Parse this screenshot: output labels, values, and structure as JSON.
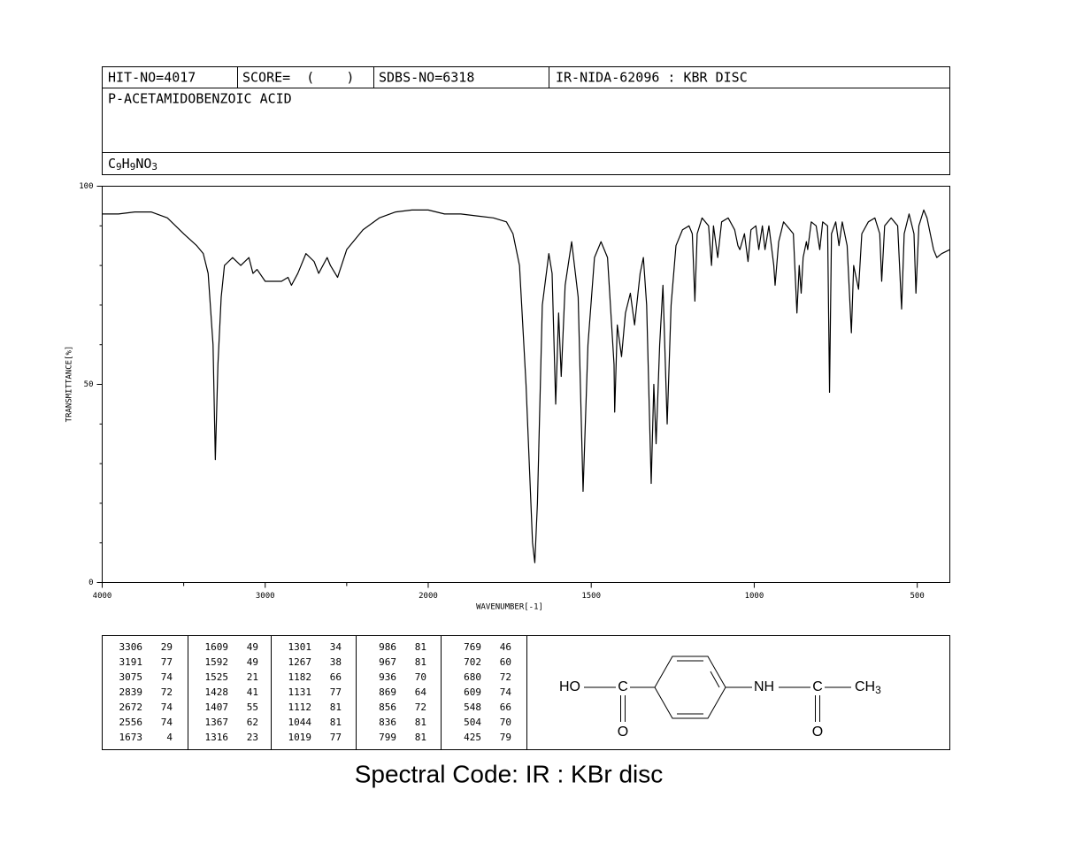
{
  "header": {
    "hit_no": "HIT-NO=4017",
    "score": "SCORE=  (    )",
    "sdbs_no": "SDBS-NO=6318",
    "code": "IR-NIDA-62096 : KBR DISC",
    "name": "P-ACETAMIDOBENZOIC ACID",
    "formula": [
      "C",
      "9",
      "H",
      "9",
      "NO",
      "3"
    ]
  },
  "chart_data": {
    "type": "line",
    "xlabel": "WAVENUMBER[-1]",
    "ylabel": "TRANSMITTANCE[%]",
    "xlim": [
      4000,
      400
    ],
    "x_scale_break": 2000,
    "xticks": [
      4000,
      3000,
      2000,
      1500,
      1000,
      500
    ],
    "xticks_minor": [
      3500,
      2500
    ],
    "ylim": [
      0,
      100
    ],
    "yticks": [
      0,
      50,
      100
    ],
    "yticks_minor": [
      10,
      20,
      30,
      40,
      60,
      70,
      80,
      90
    ],
    "x": [
      4000,
      3900,
      3800,
      3700,
      3600,
      3500,
      3420,
      3380,
      3350,
      3320,
      3306,
      3290,
      3270,
      3250,
      3200,
      3150,
      3100,
      3075,
      3050,
      3000,
      2950,
      2900,
      2860,
      2839,
      2800,
      2750,
      2700,
      2672,
      2620,
      2600,
      2556,
      2500,
      2400,
      2300,
      2200,
      2100,
      2000,
      1950,
      1900,
      1850,
      1800,
      1760,
      1740,
      1720,
      1700,
      1680,
      1673,
      1665,
      1650,
      1630,
      1620,
      1609,
      1600,
      1592,
      1580,
      1560,
      1540,
      1525,
      1510,
      1490,
      1470,
      1450,
      1430,
      1428,
      1420,
      1407,
      1395,
      1380,
      1367,
      1350,
      1340,
      1330,
      1316,
      1308,
      1301,
      1290,
      1280,
      1267,
      1255,
      1240,
      1220,
      1200,
      1190,
      1182,
      1175,
      1160,
      1140,
      1131,
      1125,
      1112,
      1100,
      1080,
      1060,
      1050,
      1044,
      1030,
      1019,
      1010,
      995,
      986,
      975,
      967,
      955,
      940,
      936,
      925,
      910,
      880,
      869,
      862,
      856,
      850,
      840,
      836,
      825,
      810,
      799,
      790,
      775,
      769,
      763,
      750,
      740,
      730,
      715,
      702,
      695,
      680,
      670,
      650,
      630,
      615,
      609,
      600,
      580,
      560,
      548,
      540,
      525,
      510,
      504,
      495,
      480,
      470,
      450,
      440,
      425,
      400
    ],
    "series": [
      {
        "color": "#000000",
        "values": [
          93,
          93,
          93.5,
          93.5,
          92,
          88,
          85,
          83,
          78,
          60,
          31,
          55,
          72,
          80,
          82,
          80,
          82,
          78,
          79,
          76,
          76,
          76,
          77,
          75,
          78,
          83,
          81,
          78,
          82,
          80,
          77,
          84,
          89,
          92,
          93.5,
          94,
          94,
          93,
          93,
          92.5,
          92,
          91,
          88,
          80,
          50,
          10,
          5,
          20,
          70,
          83,
          78,
          45,
          68,
          52,
          75,
          86,
          72,
          23,
          60,
          82,
          86,
          82,
          55,
          43,
          65,
          57,
          68,
          73,
          65,
          78,
          82,
          70,
          25,
          50,
          35,
          60,
          75,
          40,
          70,
          85,
          89,
          90,
          88,
          71,
          88,
          92,
          90,
          80,
          90,
          82,
          91,
          92,
          89,
          85,
          84,
          88,
          81,
          89,
          90,
          84,
          90,
          84,
          90,
          80,
          75,
          86,
          91,
          88,
          68,
          80,
          73,
          82,
          86,
          84,
          91,
          90,
          84,
          91,
          90,
          48,
          88,
          91,
          85,
          91,
          85,
          63,
          80,
          74,
          88,
          91,
          92,
          88,
          76,
          90,
          92,
          90,
          69,
          88,
          93,
          88,
          73,
          90,
          94,
          92,
          84,
          82,
          83,
          84
        ]
      }
    ]
  },
  "peak_table": [
    [
      3306,
      29
    ],
    [
      3191,
      77
    ],
    [
      3075,
      74
    ],
    [
      2839,
      72
    ],
    [
      2672,
      74
    ],
    [
      2556,
      74
    ],
    [
      1673,
      4
    ],
    [
      1609,
      49
    ],
    [
      1592,
      49
    ],
    [
      1525,
      21
    ],
    [
      1428,
      41
    ],
    [
      1407,
      55
    ],
    [
      1367,
      62
    ],
    [
      1316,
      23
    ],
    [
      1301,
      34
    ],
    [
      1267,
      38
    ],
    [
      1182,
      66
    ],
    [
      1131,
      77
    ],
    [
      1112,
      81
    ],
    [
      1044,
      81
    ],
    [
      1019,
      77
    ],
    [
      986,
      81
    ],
    [
      967,
      81
    ],
    [
      936,
      70
    ],
    [
      869,
      64
    ],
    [
      856,
      72
    ],
    [
      836,
      81
    ],
    [
      799,
      81
    ],
    [
      769,
      46
    ],
    [
      702,
      60
    ],
    [
      680,
      72
    ],
    [
      609,
      74
    ],
    [
      548,
      66
    ],
    [
      504,
      70
    ],
    [
      425,
      79
    ]
  ],
  "structure": {
    "left": "HO",
    "c1": "C",
    "nh": "NH",
    "c2": "C",
    "ch3": [
      "CH",
      "3"
    ],
    "o1": "O",
    "o2": "O"
  },
  "caption": "Spectral Code: IR : KBr disc"
}
